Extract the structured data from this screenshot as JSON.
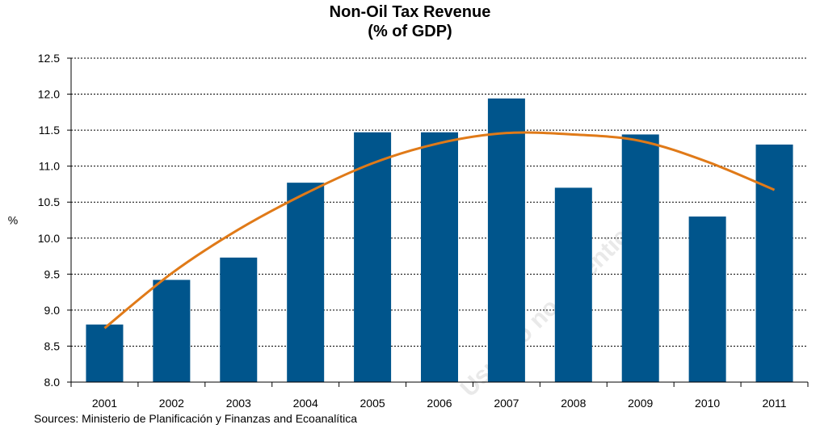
{
  "chart_data": {
    "type": "bar",
    "title": "Non-Oil Tax Revenue",
    "subtitle": "(% of GDP)",
    "xlabel": "",
    "ylabel": "%",
    "categories": [
      "2001",
      "2002",
      "2003",
      "2004",
      "2005",
      "2006",
      "2007",
      "2008",
      "2009",
      "2010",
      "2011"
    ],
    "series": [
      {
        "values": [
          8.8,
          9.42,
          9.73,
          10.77,
          11.47,
          11.47,
          11.94,
          10.7,
          11.44,
          10.3,
          11.3
        ]
      }
    ],
    "trendline": {
      "type": "polynomial-2",
      "values": [
        8.75,
        9.51,
        10.12,
        10.62,
        11.04,
        11.32,
        11.46,
        11.44,
        11.35,
        11.06,
        10.67
      ]
    },
    "ylim": [
      8.0,
      12.5
    ],
    "yticks": [
      "8.0",
      "8.5",
      "9.0",
      "9.5",
      "10.0",
      "10.5",
      "11.0",
      "11.5",
      "12.0",
      "12.5"
    ],
    "grid": true,
    "colors": {
      "bar": "#00558C",
      "trend": "#E07A18",
      "grid": "#000000"
    }
  },
  "source_note": "Sources: Ministerio de  Planificación y Finanzas  and Ecoanalítica",
  "watermark": "Usuario no autenticado"
}
